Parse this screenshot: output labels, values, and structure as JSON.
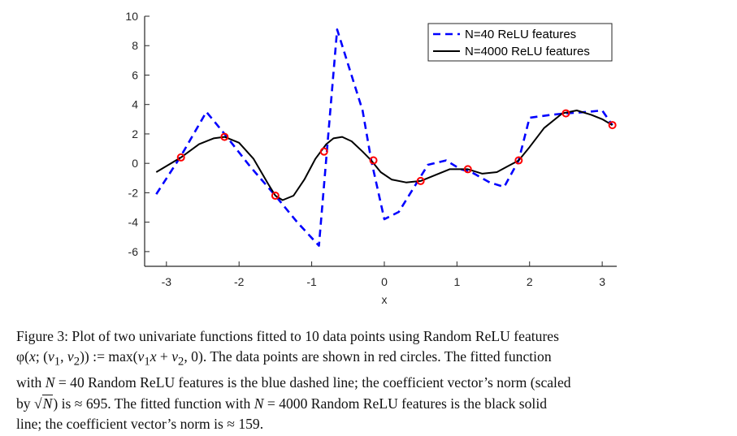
{
  "chart_data": {
    "type": "line",
    "xlabel": "x",
    "ylabel": "",
    "xlim": [
      -3.3,
      3.2
    ],
    "ylim": [
      -7,
      10
    ],
    "xticks": [
      -3,
      -2,
      -1,
      0,
      1,
      2,
      3
    ],
    "xtick_labels": [
      "-3",
      "-2",
      "-1",
      "0",
      "1",
      "2",
      "3"
    ],
    "yticks": [
      -6,
      -4,
      -2,
      0,
      2,
      4,
      6,
      8,
      10
    ],
    "ytick_labels": [
      "-6",
      "-4",
      "-2",
      "0",
      "2",
      "4",
      "6",
      "8",
      "10"
    ],
    "legend_position": "top-right",
    "series": [
      {
        "name": "N=40 ReLU features",
        "style": "dashed",
        "color": "#0000ff",
        "x": [
          -3.14,
          -2.8,
          -2.45,
          -2.2,
          -1.85,
          -1.5,
          -1.2,
          -0.9,
          -0.65,
          -0.3,
          -0.18,
          0.0,
          0.2,
          0.45,
          0.6,
          0.85,
          1.05,
          1.2,
          1.45,
          1.65,
          1.85,
          2.0,
          2.3,
          2.5,
          2.8,
          3.0,
          3.14
        ],
        "y": [
          -2.1,
          0.5,
          3.5,
          2.0,
          -0.2,
          -2.2,
          -4.0,
          -5.6,
          9.1,
          3.6,
          0.2,
          -3.8,
          -3.3,
          -1.3,
          -0.1,
          0.2,
          -0.4,
          -0.6,
          -1.3,
          -1.6,
          0.2,
          3.1,
          3.3,
          3.4,
          3.5,
          3.6,
          2.6
        ]
      },
      {
        "name": "N=4000 ReLU features",
        "style": "solid",
        "color": "#000000",
        "x": [
          -3.14,
          -2.8,
          -2.55,
          -2.35,
          -2.2,
          -2.0,
          -1.8,
          -1.6,
          -1.5,
          -1.4,
          -1.25,
          -1.1,
          -0.95,
          -0.8,
          -0.7,
          -0.58,
          -0.45,
          -0.3,
          -0.18,
          -0.05,
          0.1,
          0.3,
          0.5,
          0.7,
          0.9,
          1.15,
          1.35,
          1.55,
          1.7,
          1.85,
          2.0,
          2.2,
          2.45,
          2.65,
          2.85,
          3.0,
          3.14
        ],
        "y": [
          -0.6,
          0.4,
          1.3,
          1.7,
          1.8,
          1.4,
          0.3,
          -1.4,
          -2.2,
          -2.5,
          -2.2,
          -1.1,
          0.3,
          1.3,
          1.7,
          1.8,
          1.5,
          0.8,
          0.2,
          -0.6,
          -1.1,
          -1.3,
          -1.2,
          -0.8,
          -0.4,
          -0.4,
          -0.7,
          -0.6,
          -0.2,
          0.2,
          1.1,
          2.4,
          3.4,
          3.6,
          3.3,
          3.0,
          2.6
        ]
      }
    ],
    "points": {
      "color": "#ff0000",
      "x": [
        -2.8,
        -2.2,
        -1.5,
        -0.83,
        -0.15,
        0.5,
        1.15,
        1.85,
        2.5,
        3.14
      ],
      "y": [
        0.4,
        1.8,
        -2.2,
        0.8,
        0.2,
        -1.2,
        -0.4,
        0.2,
        3.4,
        2.6
      ]
    }
  },
  "caption": {
    "line1": "Figure 3: Plot of two univariate functions fitted to 10 data points using Random ReLU features",
    "l2_a": "φ(",
    "l2_x": "x",
    "l2_b": "; (",
    "l2_v1": "v",
    "l2_s1": "1",
    "l2_c": ", ",
    "l2_v2": "v",
    "l2_s2": "2",
    "l2_d": ")) := max(",
    "l2_v1b": "v",
    "l2_s1b": "1",
    "l2_xb": "x",
    "l2_e": " + ",
    "l2_v2b": "v",
    "l2_s2b": "2",
    "l2_f": ", 0).",
    "l2_g": "  The data points are shown in red circles.  The fitted function",
    "l3_a": "with ",
    "l3_N": "N",
    "l3_b": " = 40 Random ReLU features is the blue dashed line; the coefficient vector’s norm (scaled",
    "l4_a": "by ",
    "l4_sqrt": "√",
    "l4_N": "N",
    "l4_b": ") is ≈ 695.  The fitted function with ",
    "l4_N2": "N",
    "l4_c": " = 4000 Random ReLU features is the black solid",
    "line5": "line; the coefficient vector’s norm is ≈ 159."
  }
}
